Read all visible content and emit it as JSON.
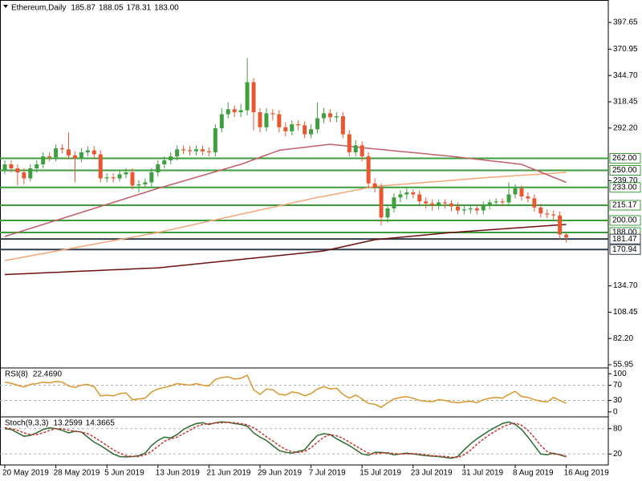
{
  "chart_data": [
    {
      "type": "candlestick",
      "title": "Ethereum,Daily",
      "header_values": [
        "185.87",
        "188.05",
        "178.31",
        "183.00"
      ],
      "categories": [
        "20 May 2019",
        null,
        null,
        null,
        null,
        null,
        null,
        null,
        "28 May 2019",
        null,
        null,
        null,
        null,
        null,
        null,
        null,
        "5 Jun 2019",
        null,
        null,
        null,
        null,
        null,
        null,
        null,
        "13 Jun 2019",
        null,
        null,
        null,
        null,
        null,
        null,
        null,
        "21 Jun 2019",
        null,
        null,
        null,
        null,
        null,
        null,
        null,
        "29 Jun 2019",
        null,
        null,
        null,
        null,
        null,
        null,
        null,
        "7 Jul 2019",
        null,
        null,
        null,
        null,
        null,
        null,
        null,
        "15 Jul 2019",
        null,
        null,
        null,
        null,
        null,
        null,
        null,
        "23 Jul 2019",
        null,
        null,
        null,
        null,
        null,
        null,
        null,
        "31 Jul 2019",
        null,
        null,
        null,
        null,
        null,
        null,
        null,
        "8 Aug 2019",
        null,
        null,
        null,
        null,
        null,
        null,
        null,
        "16 Aug 2019"
      ],
      "open": [
        250,
        256,
        252,
        248,
        242,
        252,
        256,
        264,
        263,
        272,
        271,
        265,
        262,
        268,
        270,
        266,
        242,
        243,
        242,
        246,
        248,
        235,
        236,
        238,
        248,
        256,
        260,
        264,
        271,
        270,
        269,
        271,
        269,
        268,
        292,
        306,
        311,
        308,
        310,
        338,
        308,
        293,
        307,
        306,
        293,
        289,
        296,
        295,
        286,
        291,
        302,
        307,
        303,
        304,
        286,
        268,
        275,
        264,
        237,
        233,
        203,
        212,
        223,
        226,
        228,
        226,
        219,
        217,
        215,
        218,
        217,
        214,
        210,
        211,
        212,
        210,
        215,
        218,
        219,
        218,
        226,
        232,
        224,
        222,
        213,
        207,
        206,
        205,
        185.87
      ],
      "high": [
        260,
        260,
        256,
        252,
        256,
        260,
        268,
        268,
        276,
        276,
        288,
        269,
        272,
        274,
        274,
        270,
        247,
        247,
        250,
        252,
        252,
        240,
        242,
        252,
        260,
        264,
        268,
        275,
        275,
        274,
        275,
        275,
        273,
        296,
        312,
        318,
        315,
        316,
        362,
        342,
        312,
        312,
        311,
        310,
        298,
        300,
        300,
        299,
        296,
        318,
        312,
        311,
        308,
        308,
        290,
        280,
        279,
        268,
        242,
        237,
        216,
        227,
        230,
        232,
        231,
        230,
        223,
        221,
        221,
        221,
        220,
        218,
        215,
        216,
        215,
        219,
        221,
        222,
        222,
        238,
        236,
        235,
        228,
        226,
        217,
        211,
        210,
        209,
        188.05
      ],
      "low": [
        246,
        248,
        235,
        236,
        239,
        248,
        252,
        259,
        259,
        267,
        261,
        238,
        258,
        264,
        262,
        238,
        238,
        238,
        239,
        242,
        231,
        228,
        232,
        234,
        244,
        252,
        256,
        260,
        266,
        265,
        265,
        265,
        264,
        264,
        288,
        302,
        303,
        303,
        305,
        290,
        288,
        289,
        300,
        288,
        284,
        285,
        290,
        282,
        282,
        287,
        297,
        298,
        298,
        282,
        264,
        264,
        259,
        232,
        228,
        195,
        198,
        208,
        218,
        221,
        222,
        214,
        212,
        210,
        211,
        212,
        209,
        206,
        206,
        207,
        206,
        206,
        211,
        214,
        214,
        214,
        222,
        220,
        218,
        209,
        203,
        202,
        201,
        181,
        178.31
      ],
      "close": [
        256,
        252,
        248,
        242,
        252,
        256,
        264,
        263,
        272,
        271,
        265,
        262,
        268,
        270,
        266,
        242,
        243,
        242,
        246,
        248,
        235,
        236,
        238,
        248,
        256,
        260,
        264,
        271,
        270,
        269,
        271,
        269,
        268,
        292,
        306,
        311,
        308,
        310,
        338,
        308,
        293,
        307,
        306,
        293,
        289,
        296,
        295,
        286,
        291,
        302,
        307,
        303,
        304,
        286,
        268,
        275,
        264,
        237,
        233,
        203,
        212,
        223,
        226,
        228,
        226,
        219,
        217,
        215,
        218,
        217,
        214,
        210,
        211,
        212,
        210,
        215,
        218,
        219,
        218,
        226,
        232,
        224,
        222,
        213,
        207,
        206,
        205,
        186,
        183
      ],
      "up_color": "#3f9f3f",
      "down_color": "#e8572f",
      "series": [
        {
          "color": "#6b1010",
          "values": [
            146.0,
            146.3,
            146.6,
            146.8,
            147.1,
            147.4,
            147.7,
            148.0,
            148.2,
            148.5,
            148.8,
            149.1,
            149.4,
            149.6,
            149.9,
            150.2,
            150.5,
            150.8,
            151.0,
            151.3,
            151.6,
            151.9,
            152.2,
            152.4,
            152.7,
            153.3,
            154.0,
            154.6,
            155.3,
            155.9,
            156.6,
            157.2,
            157.9,
            158.5,
            159.2,
            159.8,
            160.5,
            161.1,
            161.8,
            162.4,
            163.1,
            163.7,
            164.4,
            165.0,
            165.7,
            166.3,
            167.0,
            167.6,
            168.3,
            168.9,
            169.6,
            171.0,
            172.4,
            173.8,
            175.2,
            176.6,
            178.0,
            179.4,
            180.8,
            181.4,
            182.0,
            182.6,
            183.2,
            183.8,
            184.4,
            185.0,
            185.6,
            186.2,
            186.8,
            187.4,
            188.0,
            188.4,
            188.9,
            189.3,
            189.8,
            190.2,
            190.7,
            191.1,
            191.6,
            192.0,
            192.5,
            192.9,
            193.4,
            193.8,
            194.3,
            194.7,
            195.2,
            195.6,
            196.0
          ]
        },
        {
          "color": "#f4a67a",
          "values": [
            160,
            161.2,
            162.3,
            163.5,
            164.7,
            165.8,
            167.0,
            168.2,
            169.3,
            170.5,
            171.7,
            172.8,
            174.0,
            175.2,
            176.3,
            177.5,
            178.7,
            179.8,
            181.0,
            182.2,
            183.3,
            184.5,
            185.7,
            186.8,
            188.0,
            189.4,
            190.8,
            192.2,
            193.6,
            195.0,
            196.4,
            197.8,
            199.2,
            200.6,
            202.0,
            203.4,
            204.8,
            206.2,
            207.6,
            209.0,
            210.4,
            211.8,
            213.2,
            214.6,
            216.0,
            217.4,
            218.8,
            220.2,
            221.6,
            223.0,
            224.0,
            225.3,
            226.5,
            227.8,
            229.0,
            230.3,
            231.5,
            232.8,
            234.0,
            234.5,
            235.0,
            235.5,
            236.0,
            236.5,
            237.0,
            237.5,
            238.0,
            238.5,
            239.0,
            239.5,
            240.0,
            240.5,
            241.0,
            241.5,
            242.0,
            242.5,
            243.0,
            243.4,
            243.8,
            244.3,
            244.7,
            245.1,
            245.5,
            245.9,
            246.3,
            246.7,
            247.1,
            247.6,
            248.0
          ]
        },
        {
          "color": "#c0606a",
          "values": [
            184,
            186,
            188,
            190,
            192,
            194,
            196,
            198,
            200,
            202,
            204,
            206,
            208,
            210,
            212,
            214,
            216,
            218,
            220,
            222,
            224,
            226,
            228,
            230,
            232,
            233.8,
            235.7,
            237.5,
            239.4,
            241.2,
            243.1,
            244.9,
            246.8,
            248.6,
            250.5,
            252.3,
            254.2,
            256.0,
            258.3,
            260.7,
            263.0,
            265.3,
            267.7,
            270.0,
            270.8,
            271.5,
            272.3,
            273.0,
            273.8,
            274.5,
            275.3,
            276.0,
            275.3,
            274.7,
            274.0,
            273.3,
            272.7,
            272.0,
            271.4,
            270.8,
            270.2,
            269.5,
            268.9,
            268.3,
            267.7,
            267.1,
            266.5,
            265.8,
            265.2,
            264.6,
            264.0,
            263.3,
            262.5,
            261.8,
            261.1,
            260.4,
            259.6,
            258.9,
            258.2,
            257.5,
            256.7,
            256.0,
            253.4,
            250.9,
            248.3,
            245.7,
            243.1,
            240.6,
            238.0
          ]
        }
      ],
      "levels": [
        {
          "value": 262,
          "label": "262.00",
          "color": "#3c9c3c"
        },
        {
          "value": 250,
          "label": "250.00",
          "color": "#3c9c3c"
        },
        {
          "value": 233,
          "label": "233.00",
          "color": "#3c9c3c"
        },
        {
          "value": 215.17,
          "color": "#3c9c3c"
        },
        {
          "value": 200,
          "label": "200.00",
          "color": "#3c9c3c"
        },
        {
          "value": 188,
          "label": "188.00",
          "color": "#3c9c3c"
        },
        {
          "value": 181.47,
          "color": "#2f3d4c"
        },
        {
          "value": 170.94,
          "color": "#2f3d4c"
        }
      ],
      "ylim": [
        53.55,
        420.05
      ],
      "yticks": [
        397.65,
        370.95,
        {
          "value": 344.7,
          "label": "344.70"
        },
        318.45,
        {
          "value": 292.2,
          "label": "292.20"
        },
        {
          "value": 239.7,
          "label": "239.70"
        },
        {
          "value": 134.7,
          "label": "134.70"
        },
        108.45,
        {
          "value": 82.2,
          "label": "82.20"
        },
        55.95
      ]
    },
    {
      "type": "line",
      "title": "RSI(8)",
      "header_values": [
        "22.4690"
      ],
      "series": [
        {
          "color": "#d9962c",
          "values": [
            78,
            75,
            70,
            65,
            72,
            74,
            78,
            76,
            80,
            78,
            68,
            64,
            70,
            72,
            66,
            42,
            44,
            42,
            48,
            50,
            32,
            34,
            36,
            52,
            60,
            64,
            68,
            74,
            72,
            70,
            74,
            70,
            68,
            85,
            90,
            92,
            86,
            88,
            96,
            58,
            46,
            60,
            58,
            46,
            44,
            52,
            50,
            42,
            48,
            60,
            66,
            60,
            62,
            46,
            36,
            44,
            34,
            22,
            20,
            12,
            24,
            34,
            38,
            40,
            36,
            30,
            28,
            27,
            32,
            30,
            26,
            24,
            26,
            28,
            24,
            32,
            36,
            38,
            36,
            46,
            54,
            40,
            38,
            32,
            28,
            26,
            38,
            30,
            22.469
          ]
        }
      ],
      "ylim": [
        -13,
        113
      ],
      "yticks": [
        0,
        30,
        70,
        100
      ],
      "levels": [
        {
          "value": 30,
          "color": "#b0b0b0"
        },
        {
          "value": 70,
          "color": "#b0b0b0"
        }
      ]
    },
    {
      "type": "line",
      "title": "Stoch(9,3,3)",
      "header_values": [
        "13.2599",
        "14.3665"
      ],
      "series": [
        {
          "color": "#2e6b2e",
          "values": [
            80,
            78,
            70,
            62,
            64,
            70,
            78,
            82,
            80,
            76,
            70,
            74,
            72,
            60,
            48,
            40,
            30,
            20,
            14,
            13,
            14,
            16,
            22,
            40,
            52,
            60,
            58,
            66,
            78,
            86,
            92,
            94,
            90,
            94,
            96,
            95,
            92,
            90,
            86,
            70,
            60,
            52,
            40,
            28,
            24,
            22,
            26,
            30,
            48,
            64,
            68,
            66,
            56,
            48,
            40,
            30,
            20,
            17,
            24,
            24,
            22,
            18,
            20,
            22,
            20,
            18,
            16,
            15,
            14,
            12,
            10,
            14,
            30,
            44,
            56,
            66,
            76,
            84,
            92,
            96,
            90,
            78,
            60,
            40,
            20,
            18,
            22,
            18,
            13.2599
          ]
        },
        {
          "color": "#d03030",
          "dash": true,
          "values": [
            82,
            80,
            76,
            70,
            66,
            66,
            70,
            76,
            80,
            80,
            76,
            74,
            72,
            68,
            60,
            50,
            40,
            30,
            22,
            16,
            14,
            14,
            18,
            26,
            38,
            50,
            56,
            60,
            68,
            76,
            85,
            90,
            92,
            93,
            94,
            95,
            94,
            92,
            89,
            82,
            72,
            61,
            51,
            40,
            31,
            25,
            24,
            26,
            35,
            48,
            60,
            66,
            63,
            57,
            48,
            39,
            30,
            22,
            20,
            22,
            23,
            21,
            20,
            20,
            21,
            20,
            18,
            16,
            15,
            14,
            12,
            12,
            18,
            29,
            43,
            55,
            66,
            75,
            84,
            90,
            93,
            88,
            76,
            59,
            40,
            26,
            20,
            19,
            14.3665
          ]
        }
      ],
      "ylim": [
        -6,
        106
      ],
      "yticks": [
        20,
        80
      ],
      "levels": [
        {
          "value": 20,
          "color": "#b0b0b0"
        },
        {
          "value": 80,
          "color": "#b0b0b0"
        }
      ]
    }
  ]
}
